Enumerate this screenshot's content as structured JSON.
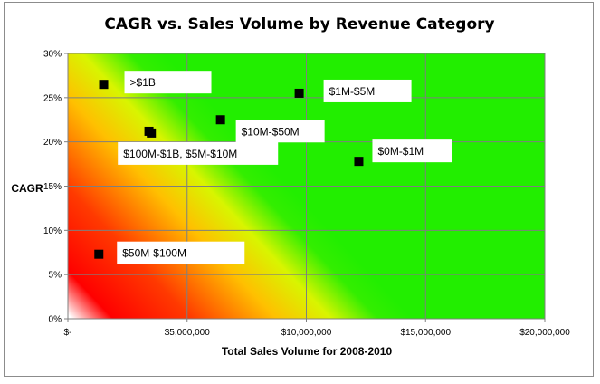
{
  "chart_data": {
    "type": "scatter",
    "title": "CAGR vs. Sales Volume  by Revenue Category",
    "xlabel": "Total Sales Volume for 2008-2010",
    "ylabel": "CAGR",
    "xlim": [
      0,
      20000000
    ],
    "ylim": [
      0,
      0.3
    ],
    "x_ticks": [
      0,
      5000000,
      10000000,
      15000000,
      20000000
    ],
    "x_tick_labels": [
      "$-",
      "$5,000,000",
      "$10,000,000",
      "$15,000,000",
      "$20,000,000"
    ],
    "y_ticks": [
      0,
      0.05,
      0.1,
      0.15,
      0.2,
      0.25,
      0.3
    ],
    "y_tick_labels": [
      "0%",
      "5%",
      "10%",
      "15%",
      "20%",
      "25%",
      "30%"
    ],
    "grid": true,
    "legend": "none",
    "marker_color": "#000000",
    "background": "red-yellow-green gradient from bottom-left to top-right",
    "points": [
      {
        "label": ">$1B",
        "x": 1500000,
        "y": 0.265
      },
      {
        "label": "$1M-$5M",
        "x": 9700000,
        "y": 0.255
      },
      {
        "label": "$10M-$50M",
        "x": 6400000,
        "y": 0.225
      },
      {
        "label": "",
        "x": 3400000,
        "y": 0.212
      },
      {
        "label": "$100M-$1B, $5M-$10M",
        "x": 3500000,
        "y": 0.21
      },
      {
        "label": "$0M-$1M",
        "x": 12200000,
        "y": 0.178
      },
      {
        "label": "$50M-$100M",
        "x": 1300000,
        "y": 0.073
      }
    ]
  }
}
